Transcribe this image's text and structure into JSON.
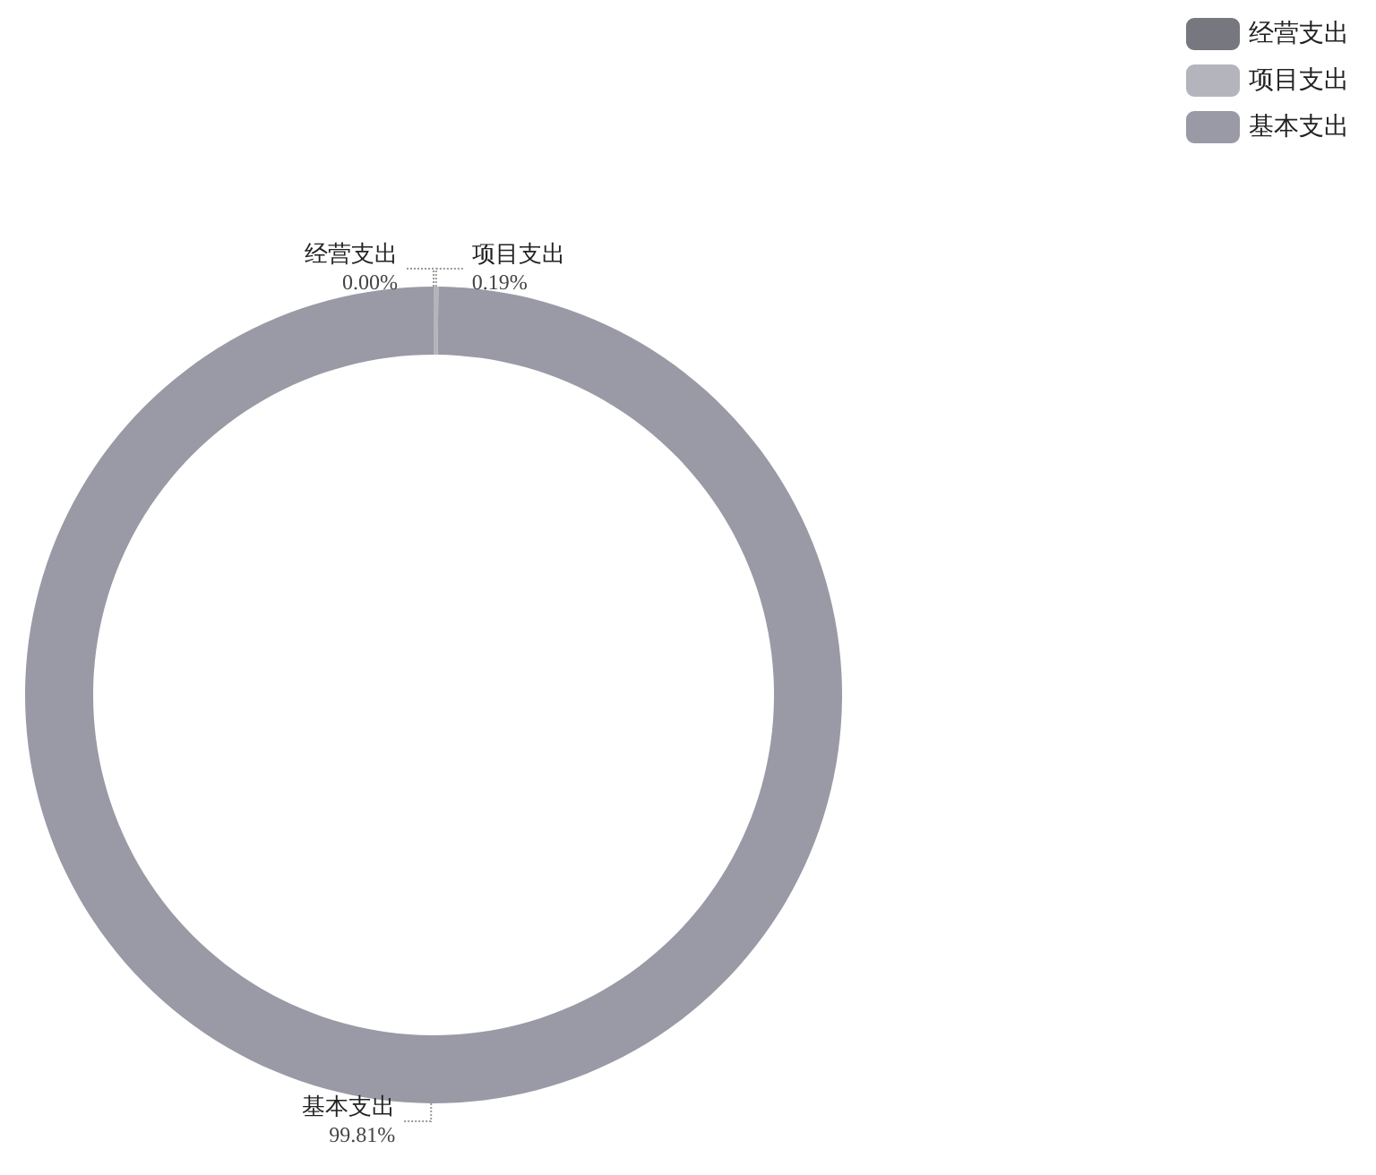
{
  "chart_data": {
    "type": "donut",
    "categories": [
      "经营支出",
      "项目支出",
      "基本支出"
    ],
    "values": [
      0.0,
      0.19,
      99.81
    ],
    "colors": [
      "#77777f",
      "#b4b4bc",
      "#9a9aa6"
    ],
    "value_labels": [
      "0.00%",
      "0.19%",
      "99.81%"
    ],
    "legend": "top right"
  }
}
